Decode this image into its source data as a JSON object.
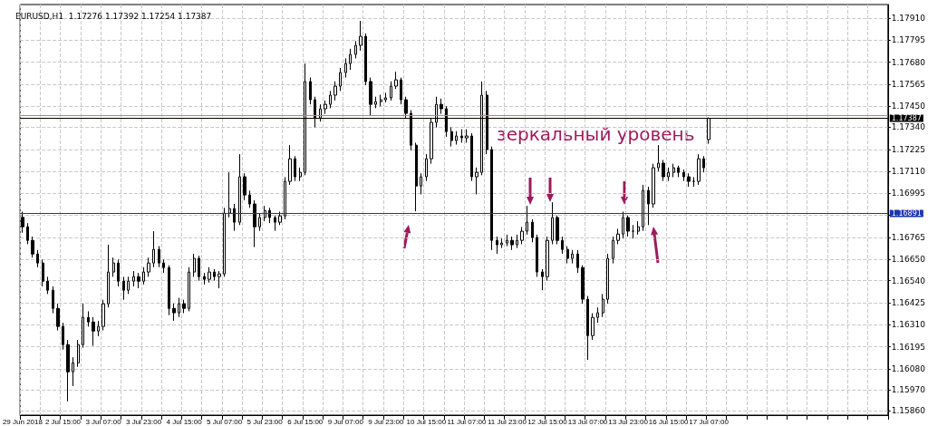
{
  "chart_data": {
    "type": "candlestick",
    "title": "EURUSD,H1  1.17276 1.17392 1.17254 1.17387",
    "color": "#000000",
    "grid": true,
    "categories": [
      "29 Jun 2018",
      null,
      null,
      null,
      null,
      null,
      null,
      null,
      "2 Jul 15:00",
      null,
      null,
      null,
      null,
      null,
      null,
      null,
      "3 Jul 07:00",
      null,
      null,
      null,
      null,
      null,
      null,
      null,
      "3 Jul 23:00",
      null,
      null,
      null,
      null,
      null,
      null,
      null,
      "4 Jul 15:00",
      null,
      null,
      null,
      null,
      null,
      null,
      null,
      "5 Jul 07:00",
      null,
      null,
      null,
      null,
      null,
      null,
      null,
      "5 Jul 23:00",
      null,
      null,
      null,
      null,
      null,
      null,
      null,
      "6 Jul 15:00",
      null,
      null,
      null,
      null,
      null,
      null,
      null,
      "9 Jul 07:00",
      null,
      null,
      null,
      null,
      null,
      null,
      null,
      "9 Jul 23:00",
      null,
      null,
      null,
      null,
      null,
      null,
      null,
      "10 Jul 15:00",
      null,
      null,
      null,
      null,
      null,
      null,
      null,
      "11 Jul 07:00",
      null,
      null,
      null,
      null,
      null,
      null,
      null,
      "11 Jul 23:00",
      null,
      null,
      null,
      null,
      null,
      null,
      null,
      "12 Jul 15:00",
      null,
      null,
      null,
      null,
      null,
      null,
      null,
      "13 Jul 07:00",
      null,
      null,
      null,
      null,
      null,
      null,
      null,
      "13 Jul 23:00",
      null,
      null,
      null,
      null,
      null,
      null,
      null,
      "16 Jul 15:00",
      null,
      null,
      null,
      null,
      null,
      null,
      null,
      "17 Jul 07:00",
      null,
      null,
      null,
      null,
      null,
      null,
      null,
      null,
      null,
      null,
      null,
      null,
      null,
      null,
      null,
      null,
      null,
      null,
      null,
      null,
      null,
      null,
      null,
      null,
      null,
      null,
      null,
      null,
      null,
      null,
      null,
      null,
      null,
      null,
      null
    ],
    "ohlc": [
      [
        1.1687,
        1.169,
        1.1679,
        1.16821
      ],
      [
        1.16821,
        1.1684,
        1.1673,
        1.1675
      ],
      [
        1.1675,
        1.1677,
        1.1666,
        1.16679
      ],
      [
        1.16679,
        1.167,
        1.1661,
        1.16632
      ],
      [
        1.16632,
        1.1665,
        1.1651,
        1.16537
      ],
      [
        1.16537,
        1.1656,
        1.1647,
        1.1649
      ],
      [
        1.1649,
        1.1651,
        1.1637,
        1.16395
      ],
      [
        1.16395,
        1.1642,
        1.1628,
        1.16301
      ],
      [
        1.16301,
        1.1632,
        1.1618,
        1.16206
      ],
      [
        1.16206,
        1.1623,
        1.1591,
        1.16064
      ],
      [
        1.16064,
        1.1614,
        1.1599,
        1.16111
      ],
      [
        1.16111,
        1.1623,
        1.1609,
        1.16206
      ],
      [
        1.16206,
        1.1642,
        1.1619,
        1.16348
      ],
      [
        1.16348,
        1.1638,
        1.163,
        1.16324
      ],
      [
        1.16324,
        1.1635,
        1.162,
        1.16277
      ],
      [
        1.16277,
        1.1633,
        1.1625,
        1.16301
      ],
      [
        1.16301,
        1.1644,
        1.1628,
        1.16419
      ],
      [
        1.16419,
        1.16727,
        1.164,
        1.16585
      ],
      [
        1.16585,
        1.1666,
        1.1656,
        1.16632
      ],
      [
        1.16632,
        1.1665,
        1.1651,
        1.16537
      ],
      [
        1.16537,
        1.1656,
        1.1644,
        1.1649
      ],
      [
        1.1649,
        1.1656,
        1.1647,
        1.16537
      ],
      [
        1.16537,
        1.1659,
        1.1651,
        1.16561
      ],
      [
        1.16561,
        1.1658,
        1.165,
        1.16537
      ],
      [
        1.16537,
        1.1661,
        1.1652,
        1.16585
      ],
      [
        1.16585,
        1.1666,
        1.1656,
        1.16632
      ],
      [
        1.16632,
        1.16798,
        1.1661,
        1.16703
      ],
      [
        1.16703,
        1.1672,
        1.1661,
        1.16632
      ],
      [
        1.16632,
        1.1665,
        1.1658,
        1.16608
      ],
      [
        1.16608,
        1.1662,
        1.1636,
        1.16395
      ],
      [
        1.16395,
        1.1642,
        1.1633,
        1.16372
      ],
      [
        1.16372,
        1.1645,
        1.1635,
        1.16419
      ],
      [
        1.16419,
        1.1644,
        1.1637,
        1.16395
      ],
      [
        1.16395,
        1.1661,
        1.1638,
        1.16585
      ],
      [
        1.16585,
        1.1668,
        1.1656,
        1.16656
      ],
      [
        1.16656,
        1.1667,
        1.1654,
        1.16561
      ],
      [
        1.16561,
        1.1658,
        1.1652,
        1.16547
      ],
      [
        1.16547,
        1.1661,
        1.1653,
        1.16585
      ],
      [
        1.16585,
        1.166,
        1.1654,
        1.16561
      ],
      [
        1.16561,
        1.1659,
        1.165,
        1.16575
      ],
      [
        1.16575,
        1.1692,
        1.1656,
        1.16892
      ],
      [
        1.16892,
        1.17105,
        1.1687,
        1.16916
      ],
      [
        1.16916,
        1.1694,
        1.168,
        1.16845
      ],
      [
        1.16845,
        1.172,
        1.1683,
        1.17082
      ],
      [
        1.17082,
        1.171,
        1.1696,
        1.16987
      ],
      [
        1.16987,
        1.1701,
        1.1692,
        1.1694
      ],
      [
        1.1694,
        1.1696,
        1.16715,
        1.16821
      ],
      [
        1.16821,
        1.1689,
        1.168,
        1.16869
      ],
      [
        1.16869,
        1.1693,
        1.1685,
        1.16906
      ],
      [
        1.16906,
        1.1692,
        1.1684,
        1.16869
      ],
      [
        1.16869,
        1.1688,
        1.168,
        1.16845
      ],
      [
        1.16845,
        1.169,
        1.1683,
        1.16878
      ],
      [
        1.16878,
        1.1708,
        1.1686,
        1.17058
      ],
      [
        1.17058,
        1.17247,
        1.1704,
        1.17176
      ],
      [
        1.17176,
        1.1719,
        1.1706,
        1.17082
      ],
      [
        1.17082,
        1.1713,
        1.1706,
        1.17105
      ],
      [
        1.17105,
        1.17673,
        1.1709,
        1.17579
      ],
      [
        1.17579,
        1.176,
        1.1746,
        1.17484
      ],
      [
        1.17484,
        1.175,
        1.1734,
        1.17389
      ],
      [
        1.17389,
        1.1746,
        1.1737,
        1.17437
      ],
      [
        1.17437,
        1.1748,
        1.1741,
        1.1746
      ],
      [
        1.1746,
        1.1753,
        1.1744,
        1.17508
      ],
      [
        1.17508,
        1.1758,
        1.1748,
        1.17555
      ],
      [
        1.17555,
        1.1765,
        1.1753,
        1.17626
      ],
      [
        1.17626,
        1.177,
        1.176,
        1.17673
      ],
      [
        1.17673,
        1.1775,
        1.1764,
        1.17721
      ],
      [
        1.17721,
        1.1779,
        1.177,
        1.17768
      ],
      [
        1.17768,
        1.17896,
        1.1774,
        1.17815
      ],
      [
        1.17815,
        1.1783,
        1.1756,
        1.17579
      ],
      [
        1.17579,
        1.176,
        1.174,
        1.1746
      ],
      [
        1.1746,
        1.175,
        1.1744,
        1.17474
      ],
      [
        1.17474,
        1.1751,
        1.1745,
        1.17484
      ],
      [
        1.17484,
        1.1752,
        1.1747,
        1.17494
      ],
      [
        1.17494,
        1.1758,
        1.1748,
        1.17555
      ],
      [
        1.17555,
        1.1763,
        1.1754,
        1.17588
      ],
      [
        1.17588,
        1.176,
        1.1746,
        1.17484
      ],
      [
        1.17484,
        1.175,
        1.1739,
        1.17413
      ],
      [
        1.17413,
        1.1743,
        1.1722,
        1.17247
      ],
      [
        1.17247,
        1.1726,
        1.16902,
        1.17034
      ],
      [
        1.17034,
        1.171,
        1.1699,
        1.17082
      ],
      [
        1.17082,
        1.172,
        1.1706,
        1.17176
      ],
      [
        1.17176,
        1.1739,
        1.1715,
        1.17366
      ],
      [
        1.17366,
        1.175,
        1.1734,
        1.1746
      ],
      [
        1.1746,
        1.1749,
        1.1741,
        1.17437
      ],
      [
        1.17437,
        1.1745,
        1.1729,
        1.17318
      ],
      [
        1.17318,
        1.1734,
        1.1724,
        1.17271
      ],
      [
        1.17271,
        1.1732,
        1.1725,
        1.17295
      ],
      [
        1.17295,
        1.1733,
        1.1726,
        1.17285
      ],
      [
        1.17285,
        1.1733,
        1.1726,
        1.17295
      ],
      [
        1.17295,
        1.1731,
        1.1706,
        1.17082
      ],
      [
        1.17082,
        1.1713,
        1.1699,
        1.17105
      ],
      [
        1.17105,
        1.17579,
        1.1709,
        1.17508
      ],
      [
        1.17508,
        1.1753,
        1.172,
        1.17224
      ],
      [
        1.17224,
        1.1724,
        1.167,
        1.1675
      ],
      [
        1.1675,
        1.1677,
        1.1668,
        1.16727
      ],
      [
        1.16727,
        1.1676,
        1.1671,
        1.16736
      ],
      [
        1.16736,
        1.1678,
        1.1672,
        1.1675
      ],
      [
        1.1675,
        1.1677,
        1.167,
        1.16727
      ],
      [
        1.16727,
        1.1678,
        1.1671,
        1.1675
      ],
      [
        1.1675,
        1.1682,
        1.1673,
        1.16798
      ],
      [
        1.16798,
        1.1693,
        1.1678,
        1.16845
      ],
      [
        1.16845,
        1.1686,
        1.1674,
        1.16765
      ],
      [
        1.16765,
        1.1678,
        1.1656,
        1.16585
      ],
      [
        1.16585,
        1.166,
        1.1649,
        1.16561
      ],
      [
        1.16561,
        1.1677,
        1.1654,
        1.1675
      ],
      [
        1.1675,
        1.16949,
        1.1673,
        1.16869
      ],
      [
        1.16869,
        1.1688,
        1.1673,
        1.1675
      ],
      [
        1.1675,
        1.1677,
        1.1668,
        1.16703
      ],
      [
        1.16703,
        1.1672,
        1.1663,
        1.16656
      ],
      [
        1.16656,
        1.167,
        1.1663,
        1.16679
      ],
      [
        1.16679,
        1.167,
        1.1658,
        1.16608
      ],
      [
        1.16608,
        1.1662,
        1.1642,
        1.16443
      ],
      [
        1.16443,
        1.1646,
        1.16126,
        1.16253
      ],
      [
        1.16253,
        1.1637,
        1.1623,
        1.16348
      ],
      [
        1.16348,
        1.164,
        1.1632,
        1.16372
      ],
      [
        1.16372,
        1.1647,
        1.1635,
        1.16443
      ],
      [
        1.16443,
        1.1668,
        1.1642,
        1.16656
      ],
      [
        1.16656,
        1.1677,
        1.1663,
        1.1675
      ],
      [
        1.1675,
        1.1681,
        1.1673,
        1.16783
      ],
      [
        1.16783,
        1.169,
        1.1676,
        1.16869
      ],
      [
        1.16869,
        1.1688,
        1.1677,
        1.16798
      ],
      [
        1.16798,
        1.1683,
        1.1676,
        1.16798
      ],
      [
        1.16798,
        1.1685,
        1.1678,
        1.16821
      ],
      [
        1.16821,
        1.1704,
        1.168,
        1.17011
      ],
      [
        1.17011,
        1.1703,
        1.1683,
        1.1694
      ],
      [
        1.1694,
        1.1715,
        1.1692,
        1.17129
      ],
      [
        1.17129,
        1.17247,
        1.1711,
        1.17153
      ],
      [
        1.17153,
        1.1717,
        1.1706,
        1.17082
      ],
      [
        1.17082,
        1.1713,
        1.1706,
        1.17105
      ],
      [
        1.17105,
        1.1715,
        1.1708,
        1.17129
      ],
      [
        1.17129,
        1.1714,
        1.1708,
        1.17105
      ],
      [
        1.17105,
        1.1712,
        1.1706,
        1.17082
      ],
      [
        1.17082,
        1.171,
        1.1703,
        1.17058
      ],
      [
        1.17058,
        1.1708,
        1.1703,
        1.17058
      ],
      [
        1.17058,
        1.172,
        1.1704,
        1.17176
      ],
      [
        1.17176,
        1.1719,
        1.17105,
        1.17129
      ],
      [
        1.17276,
        1.17392,
        1.17254,
        1.17387
      ],
      null,
      null,
      null,
      null,
      null,
      null,
      null,
      null,
      null,
      null,
      null,
      null,
      null,
      null,
      null,
      null,
      null,
      null,
      null,
      null,
      null,
      null,
      null,
      null,
      null,
      null,
      null,
      null,
      null,
      null,
      null,
      null,
      null,
      null,
      null
    ],
    "ylim": [
      1.15838,
      1.17981
    ],
    "yticks": [
      {
        "value": 1.1586,
        "label": "1.15860"
      },
      {
        "value": 1.1597,
        "label": "1.15970"
      },
      {
        "value": 1.1608,
        "label": "1.16080"
      },
      {
        "value": 1.16195,
        "label": "1.16195"
      },
      {
        "value": 1.1631,
        "label": "1.16310"
      },
      {
        "value": 1.16425,
        "label": "1.16425"
      },
      {
        "value": 1.1654,
        "label": "1.16540"
      },
      {
        "value": 1.1665,
        "label": "1.16650"
      },
      {
        "value": 1.16765,
        "label": "1.16765"
      },
      {
        "value": 1.1688,
        "label": null
      },
      {
        "value": 1.16995,
        "label": "1.16995"
      },
      {
        "value": 1.1711,
        "label": "1.17110"
      },
      {
        "value": 1.17225,
        "label": "1.17225"
      },
      {
        "value": 1.1734,
        "label": "1.17340"
      },
      {
        "value": 1.1745,
        "label": "1.17450"
      },
      {
        "value": 1.17565,
        "label": "1.17565"
      },
      {
        "value": 1.1768,
        "label": "1.17680"
      },
      {
        "value": 1.17795,
        "label": "1.17795"
      },
      {
        "value": 1.1791,
        "label": "1.17910"
      }
    ],
    "ref_lines": [
      {
        "axis": "y",
        "value": 1.17404,
        "label": null,
        "color": "#e8735a"
      },
      {
        "axis": "y",
        "value": 1.17387,
        "label": "1.17387",
        "color": "#000000"
      },
      {
        "axis": "y",
        "value": 1.16891,
        "label": "1.16891",
        "color": "#1a35b0"
      }
    ],
    "annotations": [
      "зеркальный уровень"
    ]
  }
}
